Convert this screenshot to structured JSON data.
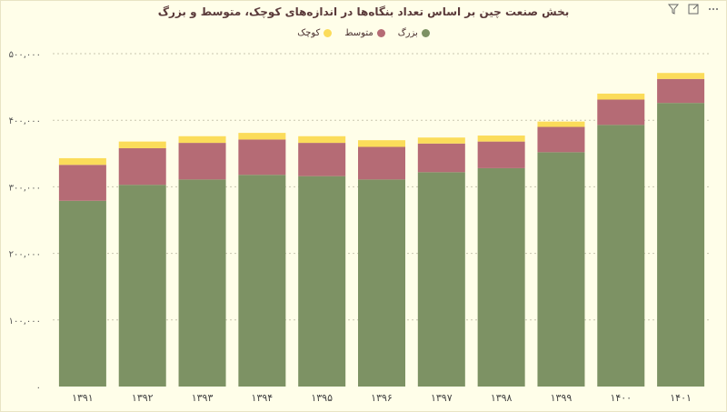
{
  "toolbar": {
    "filter_icon": "filter-icon",
    "expand_icon": "expand-icon",
    "more_icon": "more-options-icon"
  },
  "chart_data": {
    "type": "bar",
    "stacked": true,
    "title": "بخش صنعت چین بر اساس تعداد بنگاه‌ها در اندازه‌های کوچک، متوسط و بزرگ",
    "xlabel": "",
    "ylabel": "",
    "ylim": [
      0,
      500000
    ],
    "yticks": [
      0,
      100000,
      200000,
      300000,
      400000,
      500000
    ],
    "ytick_labels": [
      "۰",
      "۱۰۰,۰۰۰",
      "۲۰۰,۰۰۰",
      "۳۰۰,۰۰۰",
      "۴۰۰,۰۰۰",
      "۵۰۰,۰۰۰"
    ],
    "categories": [
      "۱۳۹۱",
      "۱۳۹۲",
      "۱۳۹۳",
      "۱۳۹۴",
      "۱۳۹۵",
      "۱۳۹۶",
      "۱۳۹۷",
      "۱۳۹۸",
      "۱۳۹۹",
      "۱۴۰۰",
      "۱۴۰۱"
    ],
    "grid": true,
    "legend_position": "top-center",
    "series": [
      {
        "name": "بزرگ",
        "color": "#7d9264",
        "values": [
          279000,
          303000,
          311000,
          318000,
          316000,
          311000,
          322000,
          328000,
          352000,
          393000,
          426000
        ]
      },
      {
        "name": "متوسط",
        "color": "#b56b75",
        "values": [
          54000,
          55000,
          55000,
          53000,
          50000,
          49000,
          43000,
          40000,
          38000,
          38000,
          36000
        ]
      },
      {
        "name": "کوچک",
        "color": "#fbdc5a",
        "values": [
          10000,
          10000,
          10000,
          10000,
          10000,
          10000,
          9000,
          9000,
          8000,
          9000,
          9000
        ]
      }
    ]
  }
}
